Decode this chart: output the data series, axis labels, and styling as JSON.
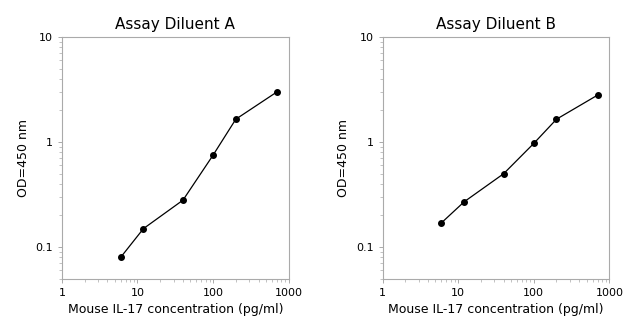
{
  "panel_A": {
    "title": "Assay Diluent A",
    "x": [
      6,
      12,
      40,
      100,
      200,
      700
    ],
    "y": [
      0.08,
      0.15,
      0.28,
      0.75,
      1.65,
      3.0
    ],
    "xlabel": "Mouse IL-17 concentration (pg/ml)",
    "ylabel": "OD=450 nm",
    "xlim": [
      1,
      1000
    ],
    "ylim": [
      0.05,
      10
    ]
  },
  "panel_B": {
    "title": "Assay Diluent B",
    "x": [
      6,
      12,
      40,
      100,
      200,
      700
    ],
    "y": [
      0.17,
      0.27,
      0.5,
      0.97,
      1.65,
      2.8
    ],
    "xlabel": "Mouse IL-17 concentration (pg/ml)",
    "ylabel": "OD=450 nm",
    "xlim": [
      1,
      1000
    ],
    "ylim": [
      0.05,
      10
    ]
  },
  "line_color": "#000000",
  "marker_color": "#000000",
  "marker_size": 4,
  "line_width": 0.9,
  "bg_color": "#ffffff",
  "title_fontsize": 11,
  "label_fontsize": 9,
  "tick_fontsize": 8,
  "spine_color": "#aaaaaa",
  "ytick_labels": [
    "0.1",
    "1",
    "10"
  ],
  "ytick_values": [
    0.1,
    1,
    10
  ],
  "xtick_labels": [
    "1",
    "10",
    "100",
    "1000"
  ],
  "xtick_values": [
    1,
    10,
    100,
    1000
  ]
}
